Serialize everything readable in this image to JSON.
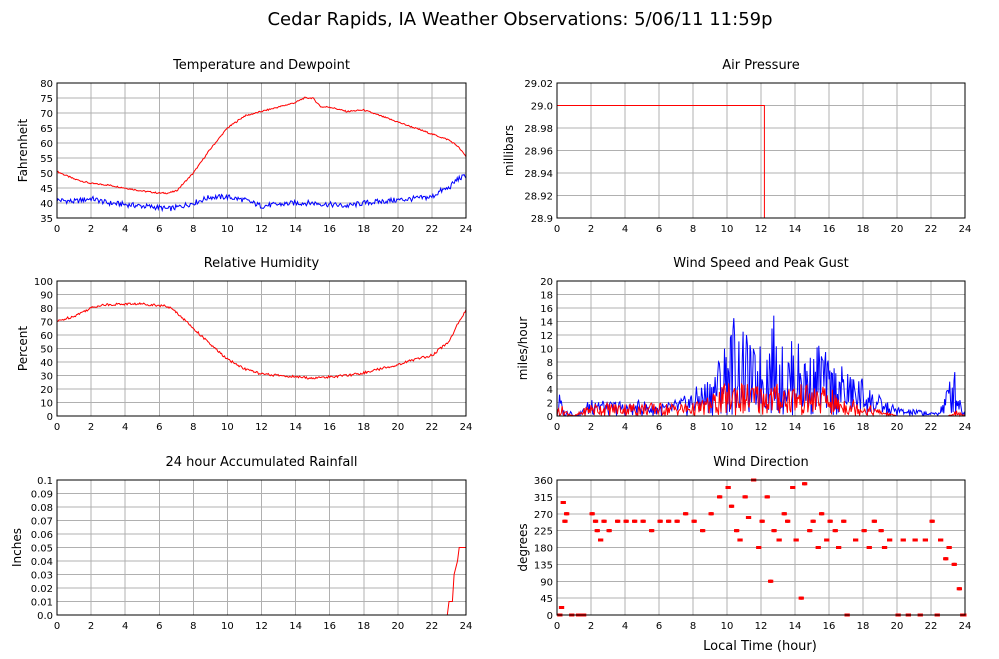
{
  "title": "Cedar Rapids, IA Weather Observations: 5/06/11 11:59p",
  "colors": {
    "red": "#ff0000",
    "blue": "#0000ff",
    "grid": "#b0b0b0"
  },
  "chart_data": [
    {
      "id": "temp",
      "type": "line",
      "title": "Temperature and Dewpoint",
      "xlabel": "",
      "ylabel": "Fahrenheit",
      "xlim": [
        0,
        24
      ],
      "ylim": [
        35,
        80
      ],
      "xticks": [
        0,
        2,
        4,
        6,
        8,
        10,
        12,
        14,
        16,
        18,
        20,
        22,
        24
      ],
      "yticks": [
        35,
        40,
        45,
        50,
        55,
        60,
        65,
        70,
        75,
        80
      ],
      "grid": true,
      "series": [
        {
          "color": "#ff0000",
          "noise": 0.25,
          "x": [
            0,
            1,
            2,
            3,
            4,
            5,
            6,
            6.5,
            7,
            8,
            9,
            10,
            10.5,
            11,
            12,
            13,
            14,
            14.5,
            15,
            15.5,
            16,
            17,
            18,
            19,
            20,
            21,
            22,
            23,
            23.5,
            24
          ],
          "y": [
            50.5,
            48,
            46.5,
            46,
            45,
            44,
            43.3,
            43.3,
            44,
            50,
            58,
            65,
            67,
            69,
            70.5,
            72,
            73.5,
            75,
            75,
            72,
            72,
            70.5,
            71,
            69,
            67,
            65,
            63,
            61,
            59,
            55.5
          ]
        },
        {
          "color": "#0000ff",
          "noise": 0.9,
          "x": [
            0,
            1,
            2,
            3,
            4,
            5,
            6,
            6.5,
            7,
            8,
            9,
            10,
            11,
            12,
            13,
            14,
            15,
            16,
            17,
            18,
            19,
            20,
            21,
            22,
            22.5,
            23,
            23.5,
            24
          ],
          "y": [
            41,
            40.5,
            41.5,
            40,
            39.5,
            39,
            38.5,
            38,
            38.5,
            40,
            42,
            42,
            41,
            39,
            39.5,
            40,
            40,
            39.5,
            39,
            40,
            40.5,
            41,
            41.5,
            42,
            44,
            45,
            48,
            49
          ]
        }
      ]
    },
    {
      "id": "pressure",
      "type": "line",
      "title": "Air Pressure",
      "xlabel": "",
      "ylabel": "millibars",
      "xlim": [
        0,
        24
      ],
      "ylim": [
        28.9,
        29.02
      ],
      "xticks": [
        0,
        2,
        4,
        6,
        8,
        10,
        12,
        14,
        16,
        18,
        20,
        22,
        24
      ],
      "yticks": [
        28.9,
        28.92,
        28.94,
        28.96,
        28.98,
        29.0,
        29.02
      ],
      "yticklabels": [
        "28.9",
        "28.92",
        "28.94",
        "28.96",
        "28.98",
        "29.0",
        "29.02"
      ],
      "grid": true,
      "series": [
        {
          "color": "#ff0000",
          "noise": 0,
          "x": [
            0,
            12.2,
            12.2
          ],
          "y": [
            29.0,
            29.0,
            28.9
          ]
        }
      ]
    },
    {
      "id": "humidity",
      "type": "line",
      "title": "Relative Humidity",
      "xlabel": "",
      "ylabel": "Percent",
      "xlim": [
        0,
        24
      ],
      "ylim": [
        0,
        100
      ],
      "xticks": [
        0,
        2,
        4,
        6,
        8,
        10,
        12,
        14,
        16,
        18,
        20,
        22,
        24
      ],
      "yticks": [
        0,
        10,
        20,
        30,
        40,
        50,
        60,
        70,
        80,
        90,
        100
      ],
      "grid": true,
      "series": [
        {
          "color": "#ff0000",
          "noise": 0.9,
          "x": [
            0,
            1,
            2,
            2.5,
            3,
            4,
            5,
            6,
            6.5,
            7,
            8,
            9,
            10,
            11,
            12,
            13,
            14,
            15,
            16,
            17,
            18,
            19,
            20,
            21,
            22,
            22.5,
            23,
            23.5,
            24
          ],
          "y": [
            70,
            74,
            80,
            82,
            82.5,
            83,
            83,
            82,
            81,
            77,
            65,
            53,
            42,
            35,
            31,
            30,
            29,
            28,
            29,
            30,
            32,
            35,
            38,
            42,
            45,
            50,
            55,
            68,
            78
          ]
        }
      ]
    },
    {
      "id": "wind",
      "type": "line",
      "title": "Wind Speed and Peak Gust",
      "xlabel": "",
      "ylabel": "miles/hour",
      "xlim": [
        0,
        24
      ],
      "ylim": [
        0,
        20
      ],
      "xticks": [
        0,
        2,
        4,
        6,
        8,
        10,
        12,
        14,
        16,
        18,
        20,
        22,
        24
      ],
      "yticks": [
        0,
        2,
        4,
        6,
        8,
        10,
        12,
        14,
        16,
        18,
        20
      ],
      "grid": true,
      "series": [
        {
          "name": "",
          "color": "#0000ff",
          "x": [
            0,
            0.1,
            0.3,
            0.5,
            0.7,
            1,
            1.5,
            2,
            2.2,
            2.5,
            3,
            3.5,
            4,
            4.5,
            5,
            5.5,
            6,
            6.5,
            7,
            7.5,
            8,
            8.5,
            9,
            9.5,
            10,
            10.3,
            10.5,
            10.8,
            11,
            11.5,
            12,
            12.5,
            12.7,
            13,
            13.5,
            14,
            14.5,
            15,
            15.5,
            16,
            16.5,
            17,
            17.5,
            18,
            18.5,
            19,
            19.5,
            20,
            20.5,
            21,
            21.5,
            22,
            22.5,
            23,
            23.3,
            23.5,
            24
          ],
          "y": [
            0,
            4,
            2,
            0,
            2,
            0,
            1,
            3,
            5,
            3,
            2,
            2.5,
            2,
            2,
            2.5,
            2,
            2,
            2,
            2.5,
            3,
            4,
            5,
            6,
            9,
            12,
            14,
            17,
            11,
            13,
            10,
            11,
            12,
            16,
            11,
            10,
            12,
            10,
            9,
            12,
            8,
            8,
            7,
            6,
            6,
            4,
            3,
            2,
            1.5,
            1,
            1,
            1,
            0.5,
            1,
            5,
            8,
            6,
            0
          ]
        },
        {
          "name": "",
          "color": "#ff0000",
          "x": [
            0,
            0.1,
            0.5,
            1,
            2,
            3,
            4,
            5,
            6,
            7,
            8,
            8.5,
            9,
            9.5,
            10,
            10.5,
            11,
            12,
            13,
            14,
            15,
            16,
            16.5,
            17,
            18,
            19,
            20,
            21,
            22,
            23,
            23.5,
            24
          ],
          "y": [
            0,
            2,
            1,
            0,
            2,
            2,
            2,
            2,
            2,
            2,
            2,
            2.5,
            3,
            4,
            5,
            6,
            5,
            5,
            5,
            5,
            4.5,
            4.5,
            3,
            3,
            2,
            1,
            0,
            0,
            0,
            0,
            1,
            0
          ]
        }
      ]
    },
    {
      "id": "rain",
      "type": "line",
      "title": "24 hour Accumulated Rainfall",
      "xlabel": "",
      "ylabel": "Inches",
      "xlim": [
        0,
        24
      ],
      "ylim": [
        0,
        0.1
      ],
      "xticks": [
        0,
        2,
        4,
        6,
        8,
        10,
        12,
        14,
        16,
        18,
        20,
        22,
        24
      ],
      "yticks": [
        0,
        0.01,
        0.02,
        0.03,
        0.04,
        0.05,
        0.06,
        0.07,
        0.08,
        0.09,
        0.1
      ],
      "yticklabels": [
        "0.0",
        "0.01",
        "0.02",
        "0.03",
        "0.04",
        "0.05",
        "0.06",
        "0.07",
        "0.08",
        "0.09",
        "0.1"
      ],
      "grid": true,
      "series": [
        {
          "color": "#ff0000",
          "noise": 0,
          "x": [
            0,
            22.9,
            23.0,
            23.2,
            23.3,
            23.5,
            23.6,
            24
          ],
          "y": [
            0,
            0,
            0.01,
            0.01,
            0.03,
            0.04,
            0.05,
            0.05
          ]
        }
      ]
    },
    {
      "id": "direction",
      "type": "scatter",
      "title": "Wind Direction",
      "xlabel": "Local Time (hour)",
      "ylabel": "degrees",
      "xlim": [
        0,
        24
      ],
      "ylim": [
        0,
        360
      ],
      "xticks": [
        0,
        2,
        4,
        6,
        8,
        10,
        12,
        14,
        16,
        18,
        20,
        22,
        24
      ],
      "yticks": [
        0,
        45,
        90,
        135,
        180,
        225,
        270,
        315,
        360
      ],
      "grid": true,
      "series": [
        {
          "color": "#ff0000",
          "points": [
            [
              0.1,
              0
            ],
            [
              0.2,
              20
            ],
            [
              0.3,
              300
            ],
            [
              0.4,
              250
            ],
            [
              0.5,
              270
            ],
            [
              0.8,
              0
            ],
            [
              1.2,
              0
            ],
            [
              1.5,
              0
            ],
            [
              2.0,
              270
            ],
            [
              2.2,
              250
            ],
            [
              2.3,
              225
            ],
            [
              2.5,
              200
            ],
            [
              2.7,
              250
            ],
            [
              3.0,
              225
            ],
            [
              3.5,
              250
            ],
            [
              4.0,
              250
            ],
            [
              4.5,
              250
            ],
            [
              5.0,
              250
            ],
            [
              5.5,
              225
            ],
            [
              6.0,
              250
            ],
            [
              6.5,
              250
            ],
            [
              7.0,
              250
            ],
            [
              7.5,
              270
            ],
            [
              8.0,
              250
            ],
            [
              8.5,
              225
            ],
            [
              9.0,
              270
            ],
            [
              9.5,
              315
            ],
            [
              10.0,
              340
            ],
            [
              10.2,
              290
            ],
            [
              10.5,
              225
            ],
            [
              10.7,
              200
            ],
            [
              11.0,
              315
            ],
            [
              11.2,
              260
            ],
            [
              11.5,
              360
            ],
            [
              11.8,
              180
            ],
            [
              12.0,
              250
            ],
            [
              12.3,
              315
            ],
            [
              12.5,
              90
            ],
            [
              12.7,
              225
            ],
            [
              13.0,
              200
            ],
            [
              13.3,
              270
            ],
            [
              13.5,
              250
            ],
            [
              13.8,
              340
            ],
            [
              14.0,
              200
            ],
            [
              14.3,
              45
            ],
            [
              14.5,
              350
            ],
            [
              14.8,
              225
            ],
            [
              15.0,
              250
            ],
            [
              15.3,
              180
            ],
            [
              15.5,
              270
            ],
            [
              15.8,
              200
            ],
            [
              16.0,
              250
            ],
            [
              16.3,
              225
            ],
            [
              16.5,
              180
            ],
            [
              16.8,
              250
            ],
            [
              17.0,
              0
            ],
            [
              17.5,
              200
            ],
            [
              18.0,
              225
            ],
            [
              18.3,
              180
            ],
            [
              18.6,
              250
            ],
            [
              19.0,
              225
            ],
            [
              19.2,
              180
            ],
            [
              19.5,
              200
            ],
            [
              20.0,
              0
            ],
            [
              20.3,
              200
            ],
            [
              20.6,
              0
            ],
            [
              21.0,
              200
            ],
            [
              21.3,
              0
            ],
            [
              21.6,
              200
            ],
            [
              22.0,
              250
            ],
            [
              22.3,
              0
            ],
            [
              22.5,
              200
            ],
            [
              22.8,
              150
            ],
            [
              23.0,
              180
            ],
            [
              23.3,
              135
            ],
            [
              23.6,
              70
            ],
            [
              23.8,
              0
            ],
            [
              24.0,
              0
            ]
          ]
        }
      ]
    }
  ]
}
